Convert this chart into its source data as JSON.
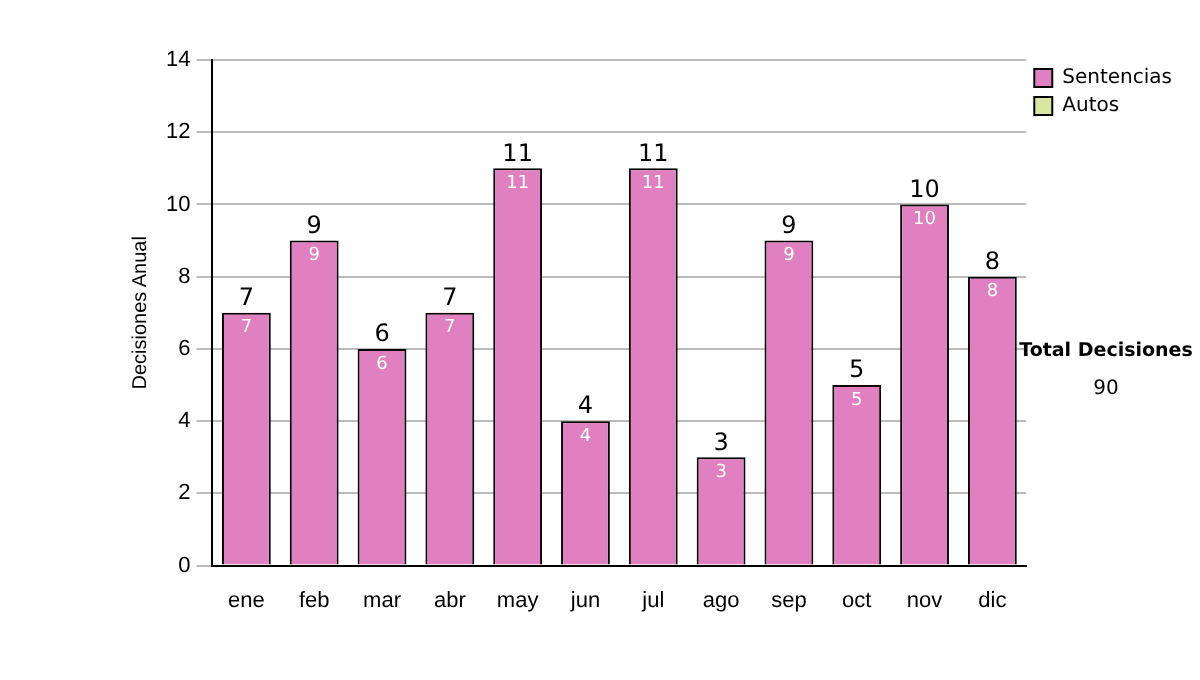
{
  "chart_data": {
    "type": "bar",
    "stacked": true,
    "ylabel": "Decisiones Anual",
    "categories": [
      "ene",
      "feb",
      "mar",
      "abr",
      "may",
      "jun",
      "jul",
      "ago",
      "sep",
      "oct",
      "nov",
      "dic"
    ],
    "series": [
      {
        "name": "Sentencias",
        "color": "#e080c0",
        "values": [
          7,
          9,
          6,
          7,
          11,
          4,
          11,
          3,
          9,
          5,
          10,
          8
        ],
        "value_labels": [
          "7",
          "9",
          "6",
          "7",
          "11",
          "4",
          "11",
          "3",
          "9",
          "5",
          "10",
          "8"
        ]
      },
      {
        "name": "Autos",
        "color": "#d8e8a0",
        "values": [
          0,
          0,
          0,
          0,
          0,
          0,
          0,
          0,
          0,
          0,
          0,
          0
        ]
      }
    ],
    "totals": [
      "7",
      "9",
      "6",
      "7",
      "11",
      "4",
      "11",
      "3",
      "9",
      "5",
      "10",
      "8"
    ],
    "ylim": [
      0,
      14
    ],
    "yticks": [
      0,
      2,
      4,
      6,
      8,
      10,
      12,
      14
    ],
    "grid": "y",
    "legend": "right",
    "annotations": [
      "Total Decisiones",
      "90"
    ]
  }
}
